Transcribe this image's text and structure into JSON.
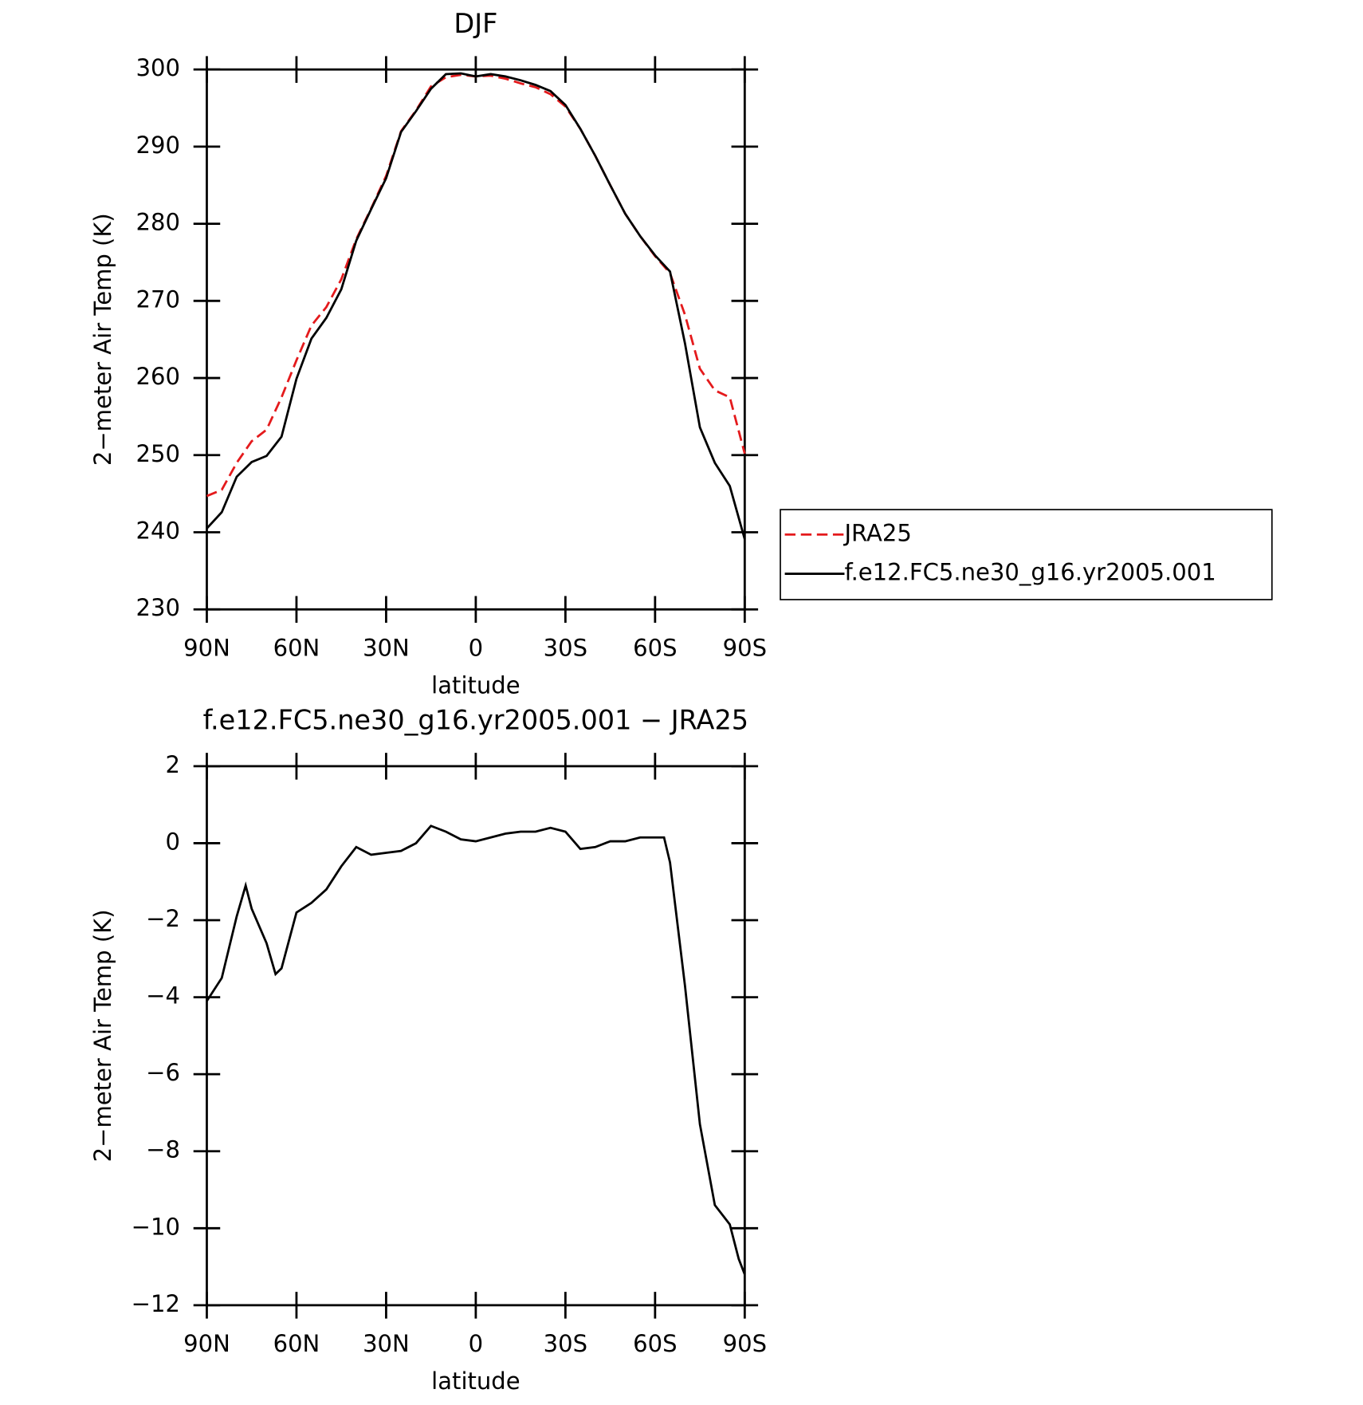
{
  "chart_data": [
    {
      "type": "line",
      "title": "DJF",
      "x_label": "latitude",
      "y_label": "2−meter Air Temp (K)",
      "x": [
        90,
        85,
        80,
        75,
        70,
        65,
        60,
        55,
        50,
        45,
        40,
        35,
        30,
        25,
        20,
        15,
        10,
        5,
        0,
        -5,
        -10,
        -15,
        -20,
        -25,
        -30,
        -35,
        -40,
        -45,
        -50,
        -55,
        -60,
        -65,
        -70,
        -75,
        -80,
        -85,
        -90
      ],
      "series": [
        {
          "name": "JRA25",
          "color": "#e41a1c",
          "dash": true,
          "values": [
            244.7,
            245.5,
            249,
            251.8,
            253.3,
            257.5,
            262.3,
            266.8,
            269.2,
            272.8,
            278,
            282,
            286.2,
            292,
            294.7,
            297.8,
            299,
            299.3,
            299.1,
            299.2,
            298.8,
            298.2,
            297.7,
            296.8,
            295.2,
            292.3,
            288.8,
            285,
            281.3,
            278.4,
            275.8,
            273.6,
            268.2,
            261.2,
            258.4,
            257.5,
            250.2
          ]
        },
        {
          "name": "f.e12.FC5.ne30_g16.yr2005.001",
          "color": "#000000",
          "dash": false,
          "values": [
            240.5,
            242.6,
            247.2,
            249.1,
            249.9,
            252.4,
            259.9,
            265.1,
            267.8,
            271.5,
            277.8,
            281.9,
            285.9,
            291.9,
            294.6,
            297.5,
            299.4,
            299.5,
            299.1,
            299.4,
            299.1,
            298.6,
            298,
            297.2,
            295.4,
            292.3,
            288.8,
            285,
            281.3,
            278.4,
            275.9,
            273.8,
            264.5,
            253.6,
            249,
            246,
            239.1
          ]
        }
      ],
      "xlim": [
        90,
        -90
      ],
      "xticks": [
        {
          "value": 90,
          "label": "90N"
        },
        {
          "value": 60,
          "label": "60N"
        },
        {
          "value": 30,
          "label": "30N"
        },
        0,
        {
          "value": -30,
          "label": "30S"
        },
        {
          "value": -60,
          "label": "60S"
        },
        {
          "value": -90,
          "label": "90S"
        }
      ],
      "ylim": [
        230,
        300
      ],
      "yticks": [
        230,
        240,
        250,
        260,
        270,
        280,
        290,
        300
      ],
      "legend": "right"
    },
    {
      "type": "line",
      "title": "f.e12.FC5.ne30_g16.yr2005.001 − JRA25",
      "x_label": "latitude",
      "y_label": "2−meter Air Temp (K)",
      "x": [
        90,
        85,
        80,
        77,
        75,
        70,
        67,
        65,
        60,
        55,
        50,
        45,
        40,
        35,
        30,
        25,
        20,
        15,
        10,
        5,
        0,
        -5,
        -10,
        -15,
        -20,
        -25,
        -30,
        -35,
        -40,
        -45,
        -50,
        -55,
        -60,
        -63,
        -65,
        -70,
        -75,
        -80,
        -85,
        -88,
        -90
      ],
      "values": [
        -4.1,
        -3.5,
        -1.9,
        -1.1,
        -1.7,
        -2.6,
        -3.4,
        -3.25,
        -1.8,
        -1.55,
        -1.2,
        -0.6,
        -0.1,
        -0.3,
        -0.25,
        -0.2,
        0,
        0.45,
        0.3,
        0.1,
        0.05,
        0.15,
        0.25,
        0.3,
        0.3,
        0.4,
        0.3,
        -0.15,
        -0.1,
        0.05,
        0.05,
        0.15,
        0.15,
        0.15,
        -0.5,
        -3.7,
        -7.3,
        -9.4,
        -9.9,
        -10.8,
        -11.2
      ],
      "color": "#000000",
      "xlim": [
        90,
        -90
      ],
      "xticks": [
        {
          "value": 90,
          "label": "90N"
        },
        {
          "value": 60,
          "label": "60N"
        },
        {
          "value": 30,
          "label": "30N"
        },
        0,
        {
          "value": -30,
          "label": "30S"
        },
        {
          "value": -60,
          "label": "60S"
        },
        {
          "value": -90,
          "label": "90S"
        }
      ],
      "ylim": [
        -12,
        2
      ],
      "yticks": [
        {
          "value": -12,
          "label": "−12"
        },
        {
          "value": -10,
          "label": "−10"
        },
        {
          "value": -8,
          "label": "−8"
        },
        {
          "value": -6,
          "label": "−6"
        },
        {
          "value": -4,
          "label": "−4"
        },
        {
          "value": -2,
          "label": "−2"
        },
        0,
        2
      ]
    }
  ]
}
